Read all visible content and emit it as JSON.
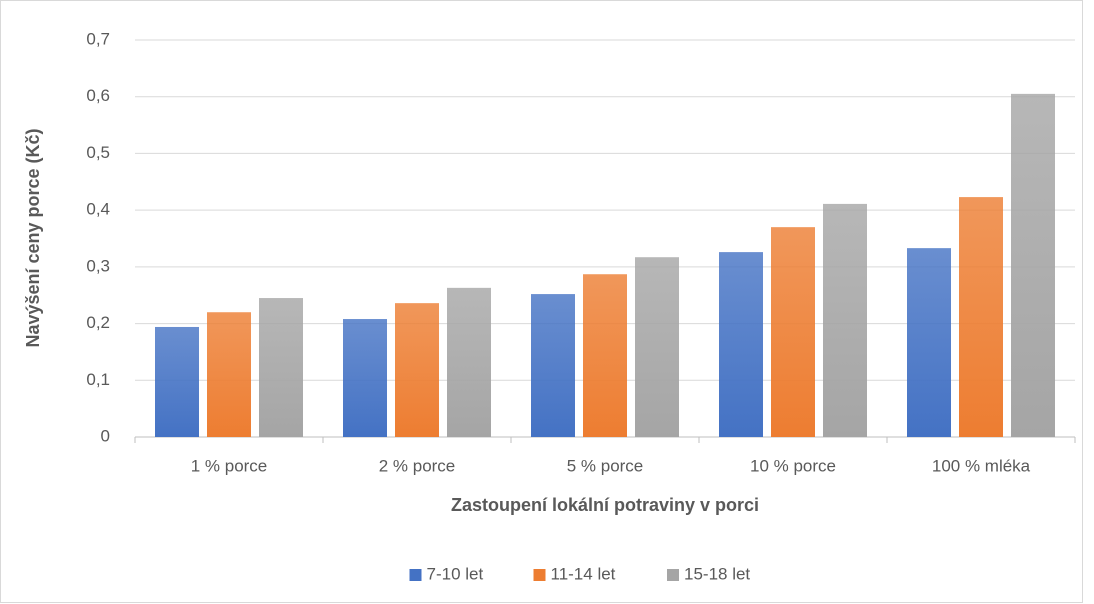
{
  "chart_data": {
    "type": "bar",
    "y_label": "Navýšení ceny porce (Kč)",
    "x_label": "Zastoupení lokální potraviny v porci",
    "categories": [
      "1 % porce",
      "2 % porce",
      "5 % porce",
      "10 % porce",
      "100 % mléka"
    ],
    "series": [
      {
        "name": "7-10 let",
        "color": "#4472c4",
        "values": [
          0.194,
          0.208,
          0.252,
          0.326,
          0.333
        ]
      },
      {
        "name": "11-14 let",
        "color": "#ed7d31",
        "values": [
          0.22,
          0.236,
          0.287,
          0.37,
          0.423
        ]
      },
      {
        "name": "15-18 let",
        "color": "#a5a5a5",
        "values": [
          0.245,
          0.263,
          0.317,
          0.411,
          0.605
        ]
      }
    ],
    "ylim": [
      0,
      0.7
    ],
    "yticks": [
      0,
      {
        "value": 0.1,
        "label": "0,1"
      },
      {
        "value": 0.2,
        "label": "0,2"
      },
      {
        "value": 0.3,
        "label": "0,3"
      },
      {
        "value": 0.4,
        "label": "0,4"
      },
      {
        "value": 0.5,
        "label": "0,5"
      },
      {
        "value": 0.6,
        "label": "0,6"
      },
      {
        "value": 0.7,
        "label": "0,7"
      }
    ],
    "grid": true,
    "legend": "bottom"
  }
}
